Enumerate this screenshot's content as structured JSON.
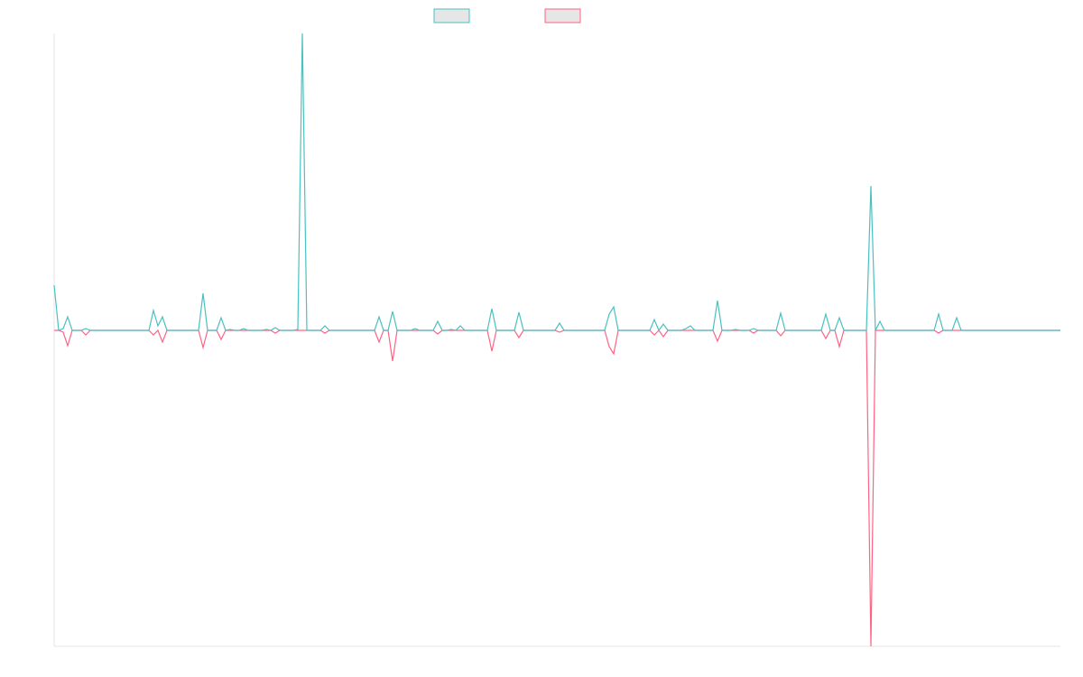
{
  "chart_data": {
    "type": "line",
    "categories": [
      null,
      null,
      null,
      null,
      null,
      null,
      null,
      null,
      null,
      null,
      null,
      null,
      null,
      null,
      null,
      null,
      null,
      null,
      null,
      null,
      null,
      null,
      null,
      null,
      null,
      null,
      null,
      null,
      null,
      null,
      null,
      null,
      null,
      null,
      null,
      null,
      null,
      null,
      null,
      null,
      null,
      null,
      null,
      null,
      null,
      null,
      null,
      null,
      null,
      null,
      null,
      null,
      null,
      null,
      null,
      null,
      null,
      null,
      null,
      null,
      null,
      null,
      null,
      null,
      null,
      null,
      null,
      null,
      null,
      null,
      null,
      null,
      null,
      null,
      null,
      null,
      null,
      null,
      null,
      null,
      null,
      null,
      null,
      null,
      null,
      null,
      null,
      null,
      null,
      null,
      null,
      null,
      null,
      null,
      null,
      null,
      null,
      null,
      null,
      null,
      null,
      null,
      null,
      null,
      null,
      null,
      null,
      null,
      null,
      null,
      null,
      null,
      null,
      null,
      null,
      null,
      null,
      null,
      null,
      null,
      null,
      null,
      null,
      null,
      null,
      null,
      null,
      null,
      null,
      null,
      null,
      null,
      null,
      null,
      null,
      null,
      null,
      null,
      null,
      null,
      null,
      null,
      null,
      null,
      null,
      null,
      null,
      null,
      null,
      null,
      null,
      null,
      null,
      null,
      null,
      null,
      null,
      null,
      null,
      null,
      null,
      null,
      null,
      null,
      null,
      null,
      null,
      null,
      null,
      null,
      null,
      null,
      null,
      null,
      null,
      null,
      null,
      null,
      null,
      null,
      null,
      null,
      null,
      null,
      null,
      null,
      null,
      null,
      null,
      null,
      null,
      null,
      null,
      null,
      null,
      null,
      null,
      null,
      null,
      null,
      null,
      null,
      null,
      null,
      null,
      null,
      null,
      null,
      null,
      null,
      null,
      null,
      null,
      null,
      null,
      null,
      null,
      null,
      null,
      null,
      null,
      null,
      null,
      null
    ],
    "series": [
      {
        "color": "#ff6384",
        "fill": "#e6e6e6",
        "values": [
          0,
          0,
          -2,
          -17,
          0,
          0,
          0,
          -5,
          0,
          0,
          0,
          0,
          0,
          0,
          0,
          0,
          0,
          0,
          0,
          0,
          0,
          0,
          -5,
          0,
          -13,
          0,
          0,
          0,
          0,
          0,
          0,
          0,
          0,
          -19,
          0,
          0,
          0,
          -10,
          0,
          0,
          0,
          0,
          0,
          0,
          0,
          0,
          0,
          0,
          0,
          -3,
          0,
          0,
          0,
          0,
          0,
          0,
          0,
          0,
          0,
          0,
          -3,
          0,
          0,
          0,
          0,
          0,
          0,
          0,
          0,
          0,
          0,
          0,
          -13,
          0,
          0,
          -34,
          0,
          0,
          0,
          0,
          0,
          0,
          0,
          0,
          0,
          -4,
          0,
          0,
          0,
          0,
          0,
          0,
          0,
          0,
          0,
          0,
          0,
          -23,
          0,
          0,
          0,
          0,
          0,
          -8,
          0,
          0,
          0,
          0,
          0,
          0,
          0,
          0,
          -2,
          0,
          0,
          0,
          0,
          0,
          0,
          0,
          0,
          0,
          0,
          -18,
          -26,
          0,
          0,
          0,
          0,
          0,
          0,
          0,
          0,
          -5,
          0,
          -7,
          0,
          0,
          0,
          0,
          0,
          0,
          0,
          0,
          0,
          0,
          0,
          -12,
          0,
          0,
          0,
          0,
          0,
          0,
          0,
          -3,
          0,
          0,
          0,
          0,
          0,
          -6,
          0,
          0,
          0,
          0,
          0,
          0,
          0,
          0,
          0,
          -9,
          0,
          0,
          -18,
          0,
          0,
          0,
          0,
          0,
          0,
          -350,
          0,
          0,
          0,
          0,
          0,
          0,
          0,
          0,
          0,
          0,
          0,
          0,
          0,
          0,
          -3,
          0,
          0,
          0,
          0,
          0,
          0,
          0,
          0,
          0,
          0,
          0,
          0,
          0,
          0,
          0,
          0,
          0,
          0,
          0,
          0,
          0,
          0,
          0,
          0,
          0,
          0,
          0
        ]
      },
      {
        "color": "#4bc0c0",
        "fill": "#e6e6e6",
        "values": [
          50,
          0,
          2,
          15,
          0,
          0,
          0,
          2,
          0,
          0,
          0,
          0,
          0,
          0,
          0,
          0,
          0,
          0,
          0,
          0,
          0,
          0,
          22,
          5,
          15,
          0,
          0,
          0,
          0,
          0,
          0,
          0,
          0,
          41,
          0,
          0,
          0,
          14,
          0,
          1,
          0,
          0,
          2,
          0,
          0,
          0,
          0,
          1,
          0,
          3,
          0,
          0,
          0,
          0,
          1,
          329,
          0,
          0,
          0,
          0,
          5,
          0,
          0,
          0,
          0,
          0,
          0,
          0,
          0,
          0,
          0,
          0,
          15,
          0,
          0,
          21,
          0,
          0,
          0,
          0,
          2,
          0,
          0,
          0,
          0,
          10,
          0,
          0,
          1,
          0,
          5,
          0,
          0,
          0,
          0,
          0,
          0,
          24,
          0,
          0,
          0,
          0,
          0,
          20,
          0,
          0,
          0,
          0,
          0,
          0,
          0,
          0,
          8,
          0,
          0,
          0,
          0,
          0,
          0,
          0,
          0,
          0,
          0,
          18,
          26,
          0,
          0,
          0,
          0,
          0,
          0,
          0,
          0,
          12,
          0,
          7,
          0,
          0,
          0,
          0,
          2,
          5,
          0,
          0,
          0,
          0,
          0,
          33,
          0,
          0,
          0,
          1,
          0,
          0,
          0,
          2,
          0,
          0,
          0,
          0,
          0,
          19,
          0,
          0,
          0,
          0,
          0,
          0,
          0,
          0,
          0,
          18,
          0,
          0,
          14,
          0,
          0,
          0,
          0,
          0,
          0,
          160,
          0,
          10,
          0,
          0,
          0,
          0,
          0,
          0,
          0,
          0,
          0,
          0,
          0,
          0,
          18,
          0,
          0,
          0,
          14,
          0,
          0,
          0,
          0,
          0,
          0,
          0,
          0,
          0,
          0,
          0,
          0,
          0,
          0,
          0,
          0,
          0,
          0,
          0,
          0,
          0,
          0,
          0
        ]
      }
    ],
    "ylim": [
      -350,
      329
    ]
  }
}
